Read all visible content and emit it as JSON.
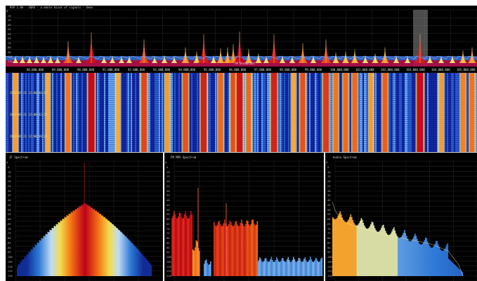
{
  "header": {
    "line": "RSP 1.0A · GQRX · a whole block of signals · demo"
  },
  "spectrum": {
    "band_label": "FM Broadcast",
    "freq_ticks": [
      "88,000,000",
      "89,000,000",
      "90,000,000",
      "91,000,000",
      "92,000,000",
      "93,000,000",
      "94,000,000",
      "95,000,000",
      "96,000,000",
      "97,000,000",
      "98,000,000",
      "99,000,000",
      "100,000,000",
      "101,000,000",
      "102,000,000",
      "103,000,000",
      "104,000,000",
      "105,000,000"
    ],
    "db_ticks": [
      "0",
      "-10",
      "-20",
      "-30",
      "-40",
      "-50",
      "-60",
      "-70",
      "-80",
      "-90",
      "-100",
      "-110"
    ]
  },
  "waterfall": {
    "time_labels": [
      "2019-01-21 12:00:46.47",
      "2019-01-21 12:00:42.37",
      "2019-01-21 12:00:38.24"
    ]
  },
  "if_spectrum": {
    "title": "IF Spectrum",
    "y_ticks": [
      "0",
      "-5",
      "-10",
      "-15",
      "-20",
      "-25",
      "-30",
      "-35",
      "-40",
      "-45",
      "-50",
      "-55",
      "-60",
      "-65",
      "-70",
      "-75",
      "-80",
      "-85",
      "-90",
      "-95",
      "-100",
      "-105",
      "-110",
      "-115",
      "-120"
    ]
  },
  "mpx_spectrum": {
    "title": "FM MPX Spectrum",
    "y_ticks": [
      "0",
      "-5",
      "-10",
      "-15",
      "-20",
      "-25",
      "-30",
      "-35",
      "-40",
      "-45",
      "-50",
      "-55",
      "-60",
      "-65",
      "-70",
      "-75",
      "-80",
      "-85",
      "-90",
      "-95",
      "-100",
      "-105",
      "-110",
      "-115",
      "-120"
    ]
  },
  "audio_spectrum": {
    "title": "Audio Spectrum",
    "y_ticks": [
      "0",
      "-5",
      "-10",
      "-15",
      "-20",
      "-25",
      "-30",
      "-35",
      "-40",
      "-45",
      "-50",
      "-55",
      "-60",
      "-65",
      "-70",
      "-75",
      "-80",
      "-85",
      "-90",
      "-95",
      "-100",
      "-105",
      "-110",
      "-115",
      "-120"
    ]
  },
  "colors": {
    "background": "#000000",
    "waterfall_low": "#0a1a8c",
    "waterfall_mid": "#2f7fe0",
    "waterfall_high": "#ffd23a",
    "peak": "#c8001a",
    "band_highlight": "#b4104e"
  }
}
